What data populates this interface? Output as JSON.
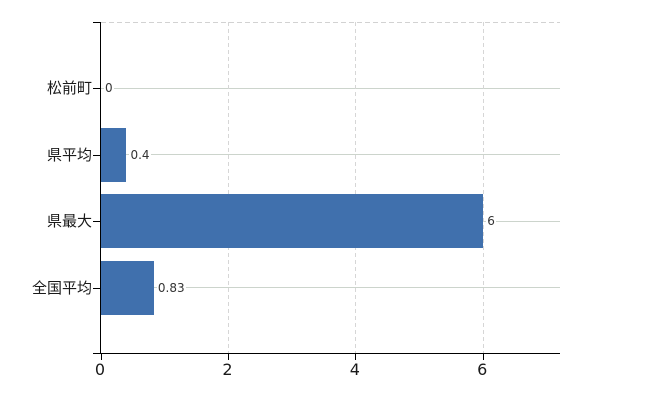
{
  "chart_data": {
    "type": "bar",
    "orientation": "horizontal",
    "title": "",
    "xlabel": "",
    "ylabel": "",
    "categories": [
      "松前町",
      "県平均",
      "県最大",
      "全国平均"
    ],
    "values": [
      0,
      0.4,
      6,
      0.83
    ],
    "value_labels": [
      "0",
      "0.4",
      "6",
      "0.83"
    ],
    "x_ticks": [
      0,
      2,
      4,
      6
    ],
    "x_tick_labels": [
      "0",
      "2",
      "4",
      "6"
    ],
    "xlim": [
      0,
      7.22
    ],
    "grid": {
      "horizontal_solid": true,
      "vertical_dashed": true,
      "top_border_dashed": true
    },
    "legend": false,
    "colors": {
      "bar": "#4070ad",
      "axis": "#000000",
      "h_gridline": "#ccd4cc",
      "v_gridline": "#d6d6d6",
      "top_border": "#d2d2d2",
      "value_label": "#333333",
      "tick_label": "#1a1a1a",
      "category_label": "#1a1a1a",
      "background": "#ffffff"
    }
  }
}
